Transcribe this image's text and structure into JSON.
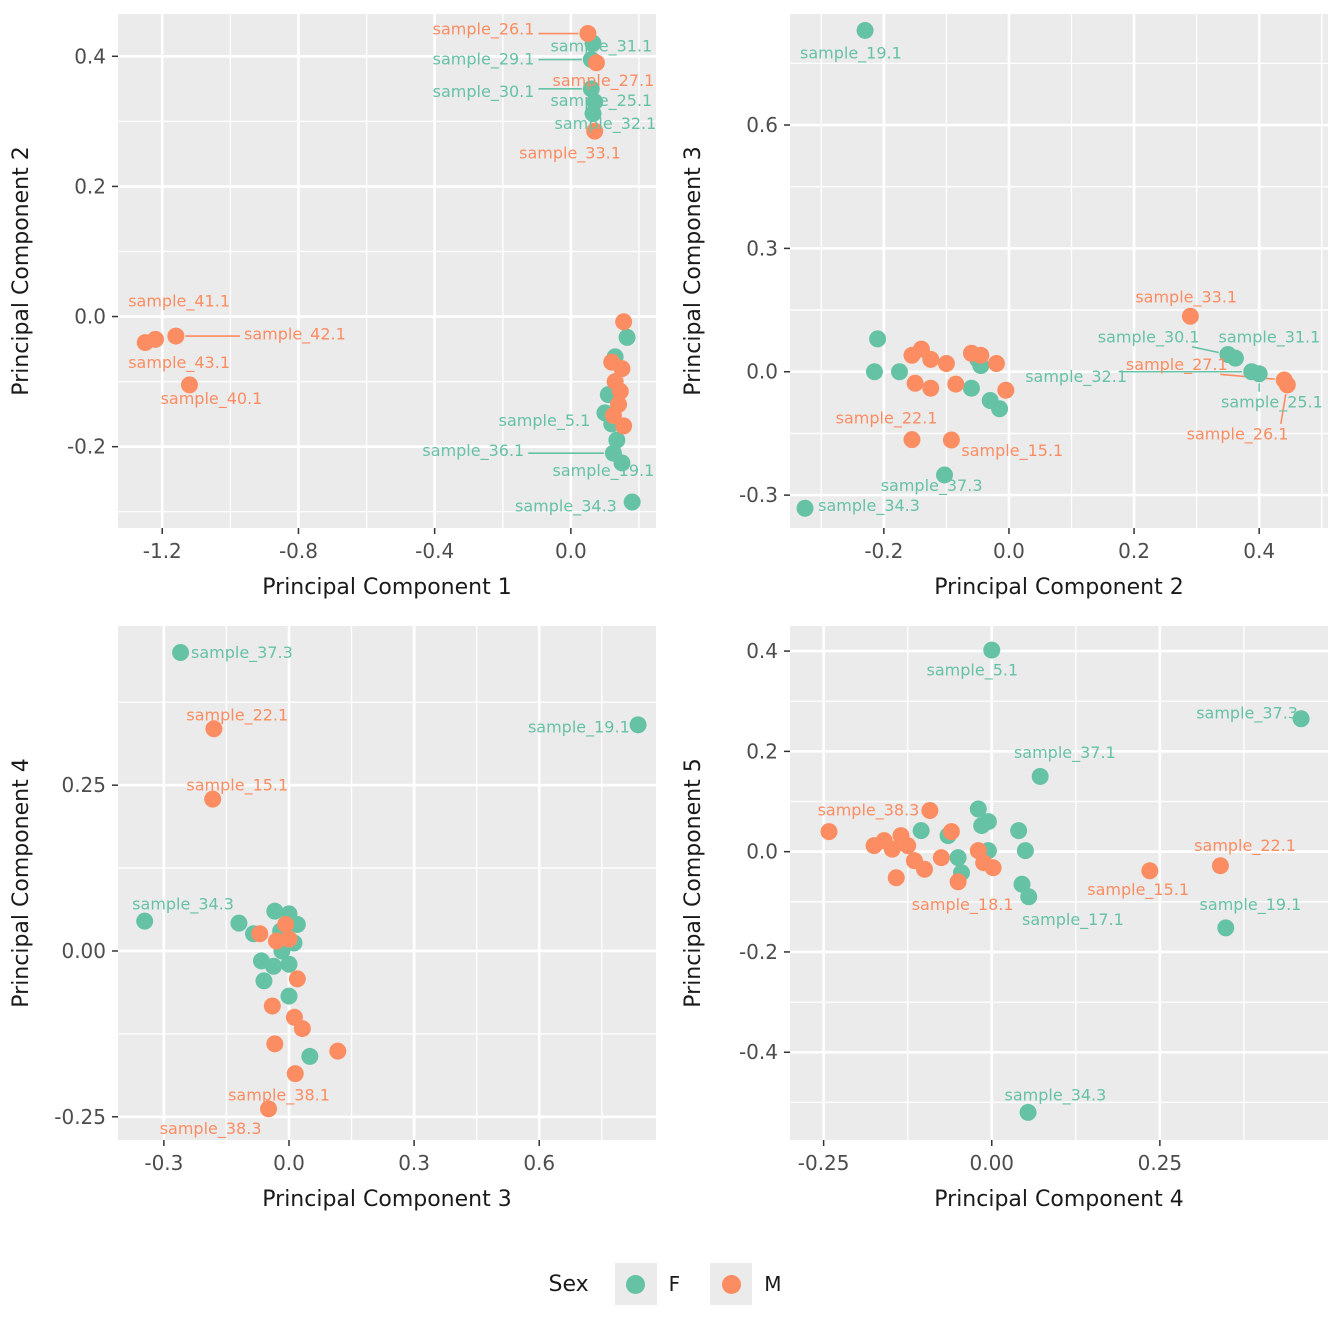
{
  "colors": {
    "F": "#66C2A5",
    "M": "#FC8D62",
    "panel_bg": "#EBEBEB",
    "grid": "#FFFFFF",
    "tick_label": "#4D4D4D",
    "axis_title": "#1A1A1A",
    "tick_mark": "#333333"
  },
  "legend": {
    "title": "Sex",
    "items": [
      {
        "label": "F",
        "color": "#66C2A5"
      },
      {
        "label": "M",
        "color": "#FC8D62"
      }
    ]
  },
  "chart_data": [
    {
      "type": "scatter",
      "xlabel": "Principal Component 1",
      "ylabel": "Principal Component 2",
      "xlim": [
        -1.33,
        0.25
      ],
      "ylim": [
        -0.325,
        0.465
      ],
      "xticks": {
        "values": [
          -1.2,
          -0.8,
          -0.4,
          0.0
        ],
        "labels": [
          "-1.2",
          "-0.8",
          "-0.4",
          "0.0"
        ]
      },
      "yticks": {
        "values": [
          -0.2,
          0.0,
          0.2,
          0.4
        ],
        "labels": [
          "-0.2",
          "0.0",
          "0.2",
          "0.4"
        ]
      },
      "series": [
        {
          "name": "F",
          "points": [
            {
              "x": 0.065,
              "y": 0.42,
              "label": "sample_31.1",
              "lx": -0.06,
              "ly": 0.416,
              "anchor": "start"
            },
            {
              "x": 0.06,
              "y": 0.395,
              "label": "sample_29.1",
              "lx": -0.107,
              "ly": 0.396,
              "anchor": "end",
              "line": true
            },
            {
              "x": 0.06,
              "y": 0.35,
              "label": "sample_30.1",
              "lx": -0.107,
              "ly": 0.346,
              "anchor": "end",
              "line": true
            },
            {
              "x": 0.07,
              "y": 0.33,
              "label": "sample_25.1",
              "lx": -0.06,
              "ly": 0.332,
              "anchor": "start"
            },
            {
              "x": 0.065,
              "y": 0.312,
              "label": "sample_32.1",
              "lx": -0.048,
              "ly": 0.297,
              "anchor": "start"
            },
            {
              "x": 0.11,
              "y": -0.12
            },
            {
              "x": 0.1,
              "y": -0.148
            },
            {
              "x": 0.12,
              "y": -0.165,
              "label": "sample_5.1",
              "lx": 0.057,
              "ly": -0.16,
              "anchor": "end"
            },
            {
              "x": 0.135,
              "y": -0.19
            },
            {
              "x": 0.125,
              "y": -0.21,
              "label": "sample_36.1",
              "lx": -0.137,
              "ly": -0.206,
              "anchor": "end",
              "line": true
            },
            {
              "x": 0.15,
              "y": -0.225,
              "label": "sample_19.1",
              "lx": -0.054,
              "ly": -0.237,
              "anchor": "start"
            },
            {
              "x": 0.18,
              "y": -0.285,
              "label": "sample_34.3",
              "lx": 0.135,
              "ly": -0.291,
              "anchor": "end"
            },
            {
              "x": 0.165,
              "y": -0.032
            },
            {
              "x": 0.13,
              "y": -0.062
            }
          ]
        },
        {
          "name": "M",
          "points": [
            {
              "x": 0.05,
              "y": 0.435,
              "label": "sample_26.1",
              "lx": -0.107,
              "ly": 0.442,
              "anchor": "end",
              "line": true
            },
            {
              "x": 0.075,
              "y": 0.39,
              "label": "sample_27.1",
              "lx": -0.054,
              "ly": 0.363,
              "anchor": "start"
            },
            {
              "x": 0.07,
              "y": 0.285,
              "label": "sample_33.1",
              "lx": -0.152,
              "ly": 0.251,
              "anchor": "start"
            },
            {
              "x": -1.25,
              "y": -0.04,
              "label": "sample_41.1",
              "lx": -1.3,
              "ly": 0.024,
              "anchor": "start"
            },
            {
              "x": -1.22,
              "y": -0.035,
              "label": "sample_43.1",
              "lx": -1.3,
              "ly": -0.071,
              "anchor": "start"
            },
            {
              "x": -1.16,
              "y": -0.03,
              "label": "sample_42.1",
              "lx": -0.96,
              "ly": -0.027,
              "anchor": "start",
              "line": true
            },
            {
              "x": -1.12,
              "y": -0.105,
              "label": "sample_40.1",
              "lx": -1.205,
              "ly": -0.126,
              "anchor": "start"
            },
            {
              "x": 0.155,
              "y": -0.008
            },
            {
              "x": 0.12,
              "y": -0.07
            },
            {
              "x": 0.15,
              "y": -0.08
            },
            {
              "x": 0.13,
              "y": -0.1
            },
            {
              "x": 0.145,
              "y": -0.115
            },
            {
              "x": 0.14,
              "y": -0.135
            },
            {
              "x": 0.125,
              "y": -0.152
            },
            {
              "x": 0.155,
              "y": -0.168
            }
          ]
        }
      ]
    },
    {
      "type": "scatter",
      "xlabel": "Principal Component 2",
      "ylabel": "Principal Component 3",
      "xlim": [
        -0.35,
        0.51
      ],
      "ylim": [
        -0.38,
        0.87
      ],
      "xticks": {
        "values": [
          -0.2,
          0.0,
          0.2,
          0.4
        ],
        "labels": [
          "-0.2",
          "0.0",
          "0.2",
          "0.4"
        ]
      },
      "yticks": {
        "values": [
          -0.3,
          0.0,
          0.3,
          0.6
        ],
        "labels": [
          "-0.3",
          "0.0",
          "0.3",
          "0.6"
        ]
      },
      "series": [
        {
          "name": "F",
          "points": [
            {
              "x": -0.23,
              "y": 0.83,
              "label": "sample_19.1",
              "lx": -0.334,
              "ly": 0.775,
              "anchor": "start"
            },
            {
              "x": -0.21,
              "y": 0.08
            },
            {
              "x": -0.215,
              "y": 0.0
            },
            {
              "x": -0.175,
              "y": 0.0
            },
            {
              "x": -0.05,
              "y": 0.03
            },
            {
              "x": -0.045,
              "y": 0.015
            },
            {
              "x": -0.03,
              "y": -0.07
            },
            {
              "x": -0.015,
              "y": -0.09
            },
            {
              "x": -0.06,
              "y": -0.04
            },
            {
              "x": -0.103,
              "y": -0.251,
              "label": "sample_37.3",
              "lx": -0.205,
              "ly": -0.277,
              "anchor": "start"
            },
            {
              "x": -0.326,
              "y": -0.332,
              "label": "sample_34.3",
              "lx": -0.305,
              "ly": -0.325,
              "anchor": "start"
            },
            {
              "x": 0.35,
              "y": 0.042,
              "label": "sample_30.1",
              "lx": 0.142,
              "ly": 0.085,
              "anchor": "start",
              "line": true
            },
            {
              "x": 0.362,
              "y": 0.033,
              "label": "sample_31.1",
              "lx": 0.335,
              "ly": 0.085,
              "anchor": "start"
            },
            {
              "x": 0.4,
              "y": -0.005,
              "label": "sample_25.1",
              "lx": 0.339,
              "ly": -0.073,
              "anchor": "start",
              "line": true
            },
            {
              "x": 0.388,
              "y": 0.0,
              "label": "sample_32.1",
              "lx": 0.026,
              "ly": -0.012,
              "anchor": "start",
              "line": true
            }
          ]
        },
        {
          "name": "M",
          "points": [
            {
              "x": 0.29,
              "y": 0.135,
              "label": "sample_33.1",
              "lx": 0.202,
              "ly": 0.182,
              "anchor": "start"
            },
            {
              "x": 0.44,
              "y": -0.02,
              "label": "sample_27.1",
              "lx": 0.187,
              "ly": 0.018,
              "anchor": "start",
              "line": true
            },
            {
              "x": 0.445,
              "y": -0.032,
              "label": "sample_26.1",
              "lx": 0.284,
              "ly": -0.151,
              "anchor": "start",
              "line": true
            },
            {
              "x": -0.155,
              "y": -0.165,
              "label": "sample_22.1",
              "lx": -0.277,
              "ly": -0.112,
              "anchor": "start"
            },
            {
              "x": -0.092,
              "y": -0.166,
              "label": "sample_15.1",
              "lx": -0.076,
              "ly": -0.192,
              "anchor": "start"
            },
            {
              "x": -0.155,
              "y": 0.04
            },
            {
              "x": -0.14,
              "y": 0.055
            },
            {
              "x": -0.125,
              "y": 0.03
            },
            {
              "x": -0.15,
              "y": -0.028
            },
            {
              "x": -0.125,
              "y": -0.04
            },
            {
              "x": -0.085,
              "y": -0.03
            },
            {
              "x": -0.06,
              "y": 0.045
            },
            {
              "x": -0.045,
              "y": 0.04
            },
            {
              "x": -0.02,
              "y": 0.02
            },
            {
              "x": -0.005,
              "y": -0.045
            },
            {
              "x": -0.1,
              "y": 0.02
            }
          ]
        }
      ]
    },
    {
      "type": "scatter",
      "xlabel": "Principal Component 3",
      "ylabel": "Principal Component 4",
      "xlim": [
        -0.41,
        0.88
      ],
      "ylim": [
        -0.285,
        0.49
      ],
      "xticks": {
        "values": [
          -0.3,
          0.0,
          0.3,
          0.6
        ],
        "labels": [
          "-0.3",
          "0.0",
          "0.3",
          "0.6"
        ]
      },
      "yticks": {
        "values": [
          -0.25,
          0.0,
          0.25
        ],
        "labels": [
          "-0.25",
          "0.00",
          "0.25"
        ]
      },
      "series": [
        {
          "name": "F",
          "points": [
            {
              "x": -0.26,
              "y": 0.45,
              "label": "sample_37.3",
              "lx": -0.235,
              "ly": 0.45,
              "anchor": "start"
            },
            {
              "x": 0.837,
              "y": 0.341,
              "label": "sample_19.1",
              "lx": 0.573,
              "ly": 0.338,
              "anchor": "start"
            },
            {
              "x": -0.346,
              "y": 0.045,
              "label": "sample_34.3",
              "lx": -0.376,
              "ly": 0.071,
              "anchor": "start"
            },
            {
              "x": -0.12,
              "y": 0.042
            },
            {
              "x": -0.085,
              "y": 0.026
            },
            {
              "x": -0.034,
              "y": 0.06
            },
            {
              "x": 0.0,
              "y": 0.056
            },
            {
              "x": 0.02,
              "y": 0.04
            },
            {
              "x": -0.017,
              "y": 0.0
            },
            {
              "x": -0.066,
              "y": -0.015
            },
            {
              "x": -0.037,
              "y": -0.023
            },
            {
              "x": 0.0,
              "y": -0.02
            },
            {
              "x": -0.06,
              "y": -0.045
            },
            {
              "x": 0.0,
              "y": -0.068
            },
            {
              "x": 0.05,
              "y": -0.159
            },
            {
              "x": -0.02,
              "y": 0.03
            },
            {
              "x": 0.012,
              "y": 0.012
            }
          ]
        },
        {
          "name": "M",
          "points": [
            {
              "x": -0.18,
              "y": 0.335,
              "label": "sample_22.1",
              "lx": -0.246,
              "ly": 0.356,
              "anchor": "start"
            },
            {
              "x": -0.183,
              "y": 0.229,
              "label": "sample_15.1",
              "lx": -0.246,
              "ly": 0.25,
              "anchor": "start"
            },
            {
              "x": 0.015,
              "y": -0.185,
              "label": "sample_38.1",
              "lx": -0.146,
              "ly": -0.217,
              "anchor": "start"
            },
            {
              "x": -0.049,
              "y": -0.238,
              "label": "sample_38.3",
              "lx": -0.31,
              "ly": -0.268,
              "anchor": "start"
            },
            {
              "x": -0.07,
              "y": 0.026
            },
            {
              "x": -0.03,
              "y": 0.015
            },
            {
              "x": 0.0,
              "y": 0.018
            },
            {
              "x": -0.04,
              "y": -0.083
            },
            {
              "x": 0.013,
              "y": -0.1
            },
            {
              "x": 0.032,
              "y": -0.117
            },
            {
              "x": -0.034,
              "y": -0.14
            },
            {
              "x": 0.117,
              "y": -0.151
            },
            {
              "x": -0.008,
              "y": 0.04
            },
            {
              "x": 0.02,
              "y": -0.042
            }
          ]
        }
      ]
    },
    {
      "type": "scatter",
      "xlabel": "Principal Component 4",
      "ylabel": "Principal Component 5",
      "xlim": [
        -0.3,
        0.5
      ],
      "ylim": [
        -0.575,
        0.45
      ],
      "xticks": {
        "values": [
          -0.25,
          0.0,
          0.25
        ],
        "labels": [
          "-0.25",
          "0.00",
          "0.25"
        ]
      },
      "yticks": {
        "values": [
          -0.4,
          -0.2,
          0.0,
          0.2,
          0.4
        ],
        "labels": [
          "-0.4",
          "-0.2",
          "0.0",
          "0.2",
          "0.4"
        ]
      },
      "series": [
        {
          "name": "F",
          "points": [
            {
              "x": 0.0,
              "y": 0.402,
              "label": "sample_5.1",
              "lx": -0.097,
              "ly": 0.362,
              "anchor": "start"
            },
            {
              "x": 0.46,
              "y": 0.265,
              "label": "sample_37.3",
              "lx": 0.304,
              "ly": 0.277,
              "anchor": "start"
            },
            {
              "x": 0.072,
              "y": 0.15,
              "label": "sample_37.1",
              "lx": 0.033,
              "ly": 0.198,
              "anchor": "start"
            },
            {
              "x": 0.348,
              "y": -0.152,
              "label": "sample_19.1",
              "lx": 0.309,
              "ly": -0.105,
              "anchor": "start"
            },
            {
              "x": 0.055,
              "y": -0.09,
              "label": "sample_17.1",
              "lx": 0.045,
              "ly": -0.135,
              "anchor": "start"
            },
            {
              "x": 0.054,
              "y": -0.52,
              "label": "sample_34.3",
              "lx": 0.019,
              "ly": -0.485,
              "anchor": "start"
            },
            {
              "x": -0.105,
              "y": 0.042
            },
            {
              "x": -0.065,
              "y": 0.032
            },
            {
              "x": -0.05,
              "y": -0.012
            },
            {
              "x": -0.045,
              "y": -0.042
            },
            {
              "x": -0.02,
              "y": 0.085
            },
            {
              "x": -0.015,
              "y": 0.052
            },
            {
              "x": -0.005,
              "y": 0.002
            },
            {
              "x": 0.04,
              "y": 0.042
            },
            {
              "x": 0.05,
              "y": 0.002
            },
            {
              "x": 0.045,
              "y": -0.065
            },
            {
              "x": -0.005,
              "y": 0.06
            }
          ]
        },
        {
          "name": "M",
          "points": [
            {
              "x": -0.242,
              "y": 0.04,
              "label": "sample_38.3",
              "lx": -0.259,
              "ly": 0.083,
              "anchor": "start"
            },
            {
              "x": 0.34,
              "y": -0.028,
              "label": "sample_22.1",
              "lx": 0.301,
              "ly": 0.012,
              "anchor": "start"
            },
            {
              "x": 0.235,
              "y": -0.038,
              "label": "sample_15.1",
              "lx": 0.142,
              "ly": -0.075,
              "anchor": "start"
            },
            {
              "x": -0.05,
              "y": -0.06,
              "label": "sample_18.1",
              "lx": -0.119,
              "ly": -0.105,
              "anchor": "start"
            },
            {
              "x": -0.175,
              "y": 0.012
            },
            {
              "x": -0.16,
              "y": 0.022
            },
            {
              "x": -0.148,
              "y": 0.005
            },
            {
              "x": -0.135,
              "y": 0.032
            },
            {
              "x": -0.125,
              "y": 0.012
            },
            {
              "x": -0.115,
              "y": -0.018
            },
            {
              "x": -0.142,
              "y": -0.052
            },
            {
              "x": -0.092,
              "y": 0.082
            },
            {
              "x": -0.1,
              "y": -0.035
            },
            {
              "x": -0.075,
              "y": -0.012
            },
            {
              "x": -0.02,
              "y": 0.002
            },
            {
              "x": -0.012,
              "y": -0.022
            },
            {
              "x": 0.002,
              "y": -0.032
            },
            {
              "x": -0.06,
              "y": 0.04
            }
          ]
        }
      ]
    }
  ]
}
